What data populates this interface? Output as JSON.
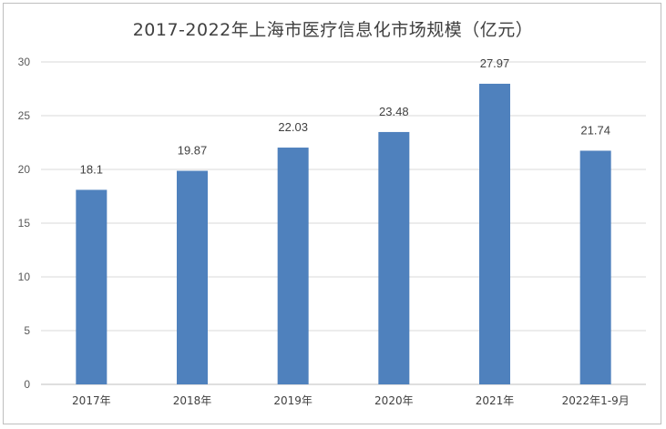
{
  "chart_data": {
    "type": "bar",
    "title": "2017-2022年上海市医疗信息化市场规模（亿元）",
    "categories": [
      "2017年",
      "2018年",
      "2019年",
      "2020年",
      "2021年",
      "2022年1-9月"
    ],
    "values": [
      18.1,
      19.87,
      22.03,
      23.48,
      27.97,
      21.74
    ],
    "data_labels": [
      "18.1",
      "19.87",
      "22.03",
      "23.48",
      "27.97",
      "21.74"
    ],
    "ylim": [
      0,
      30
    ],
    "yticks": [
      0,
      5,
      10,
      15,
      20,
      25,
      30
    ],
    "xlabel": "",
    "ylabel": "",
    "grid": true,
    "bar_color": "#4f81bd",
    "grid_color": "#d9d9d9"
  }
}
